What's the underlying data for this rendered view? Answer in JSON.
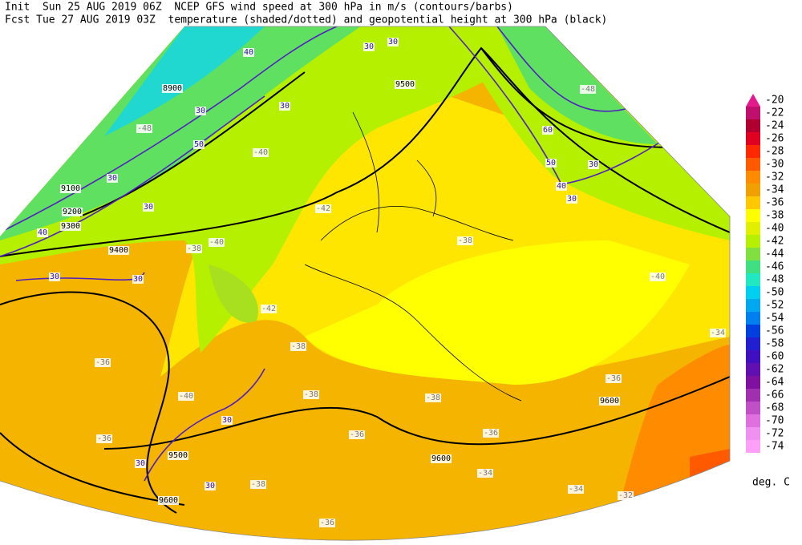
{
  "header": {
    "line1": "Init  Sun 25 AUG 2019 06Z  NCEP GFS wind speed at 300 hPa in m/s (contours/barbs)",
    "line2": "Fcst Tue 27 AUG 2019 03Z  temperature (shaded/dotted) and geopotential height at 300 hPa (black)"
  },
  "map": {
    "height_labels": [
      8900,
      9100,
      9200,
      9300,
      9400,
      9500,
      9500,
      9600,
      9600,
      9600
    ],
    "wind_labels": [
      30,
      30,
      30,
      30,
      30,
      30,
      30,
      30,
      30,
      30,
      30,
      30,
      30,
      40,
      40,
      40,
      50,
      50,
      60
    ],
    "temperature_labels": [
      -48,
      -48,
      -40,
      -40,
      -40,
      -40,
      -42,
      -42,
      -38,
      -38,
      -38,
      -38,
      -38,
      -36,
      -36,
      -36,
      -36,
      -36,
      -36,
      -34,
      -34,
      -34,
      -32,
      -38
    ]
  },
  "colorbar": {
    "levels": [
      -20,
      -22,
      -24,
      -26,
      -28,
      -30,
      -32,
      -34,
      -36,
      -38,
      -40,
      -42,
      -44,
      -46,
      -48,
      -50,
      -52,
      -54,
      -56,
      -58,
      -60,
      -62,
      -64,
      -66,
      -68,
      -70,
      -72,
      -74
    ],
    "colors": [
      "#e6198c",
      "#c0106e",
      "#b00030",
      "#e00020",
      "#ff2800",
      "#ff5a00",
      "#ff8c00",
      "#f0a000",
      "#ffc800",
      "#ffff00",
      "#e0f000",
      "#b4f000",
      "#80e040",
      "#40e080",
      "#20e8c0",
      "#00d0f0",
      "#00a8f0",
      "#0080f0",
      "#0040e0",
      "#2020d0",
      "#4010c0",
      "#6010b0",
      "#8010a0",
      "#a030b0",
      "#c050c8",
      "#e070e0",
      "#f090f0",
      "#ffa0f8"
    ],
    "unit": "deg. C"
  }
}
